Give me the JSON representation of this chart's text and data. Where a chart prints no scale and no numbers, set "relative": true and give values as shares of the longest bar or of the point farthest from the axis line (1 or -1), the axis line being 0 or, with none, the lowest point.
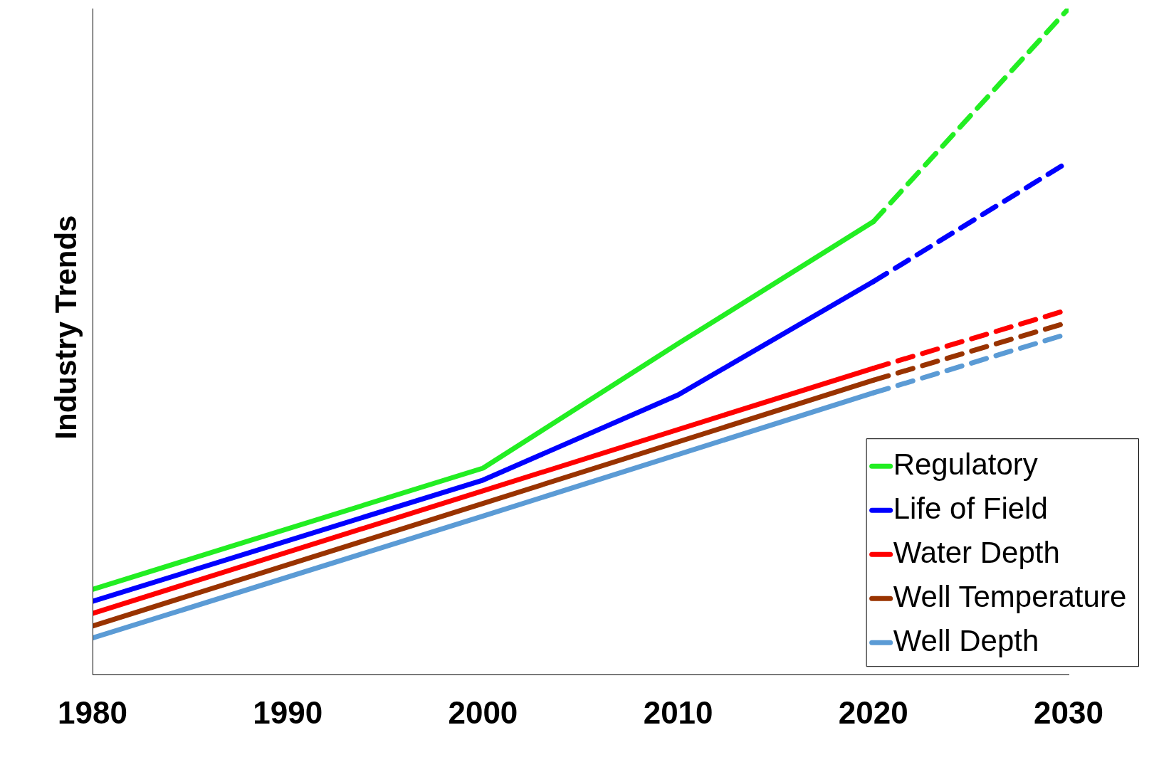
{
  "chart_data": {
    "type": "line",
    "ylabel": "Industry Trends",
    "relative": true,
    "xlim": [
      1980,
      2030
    ],
    "xticks": [
      1980,
      1990,
      2000,
      2010,
      2020,
      2030
    ],
    "grid": false,
    "legend": "bottom right",
    "marker": "none",
    "line_style": "solid",
    "series": [
      {
        "name": "Regulatory",
        "color": "#22ee22",
        "x": [
          1980,
          2000,
          2010,
          2020
        ],
        "values": [
          0.128,
          0.31,
          0.497,
          0.68
        ]
      },
      {
        "name": "Life of Field",
        "color": "#0000ff",
        "x": [
          1980,
          2000,
          2010,
          2020
        ],
        "values": [
          0.11,
          0.292,
          0.42,
          0.59
        ]
      },
      {
        "name": "Water Depth",
        "color": "#ff0000",
        "x": [
          1980,
          2000,
          2020
        ],
        "values": [
          0.092,
          0.276,
          0.46
        ]
      },
      {
        "name": "Well Temperature",
        "color": "#993300",
        "x": [
          1980,
          2000,
          2020
        ],
        "values": [
          0.073,
          0.257,
          0.442
        ]
      },
      {
        "name": "Well Depth",
        "color": "#5b9bd5",
        "x": [
          1980,
          2000,
          2020
        ],
        "values": [
          0.055,
          0.238,
          0.423
        ]
      },
      {
        "color": "#22ee22",
        "x": [
          2020,
          2030
        ],
        "values": [
          0.68,
          1
        ],
        "line_style": "dashed"
      },
      {
        "color": "#0000ff",
        "x": [
          2020,
          2030
        ],
        "values": [
          0.59,
          0.77
        ],
        "line_style": "dashed"
      },
      {
        "color": "#ff0000",
        "x": [
          2020,
          2030
        ],
        "values": [
          0.46,
          0.548
        ],
        "line_style": "dashed"
      },
      {
        "color": "#993300",
        "x": [
          2020,
          2030
        ],
        "values": [
          0.442,
          0.529
        ],
        "line_style": "dashed"
      },
      {
        "color": "#5b9bd5",
        "x": [
          2020,
          2030
        ],
        "values": [
          0.423,
          0.512
        ],
        "line_style": "dashed"
      }
    ]
  }
}
